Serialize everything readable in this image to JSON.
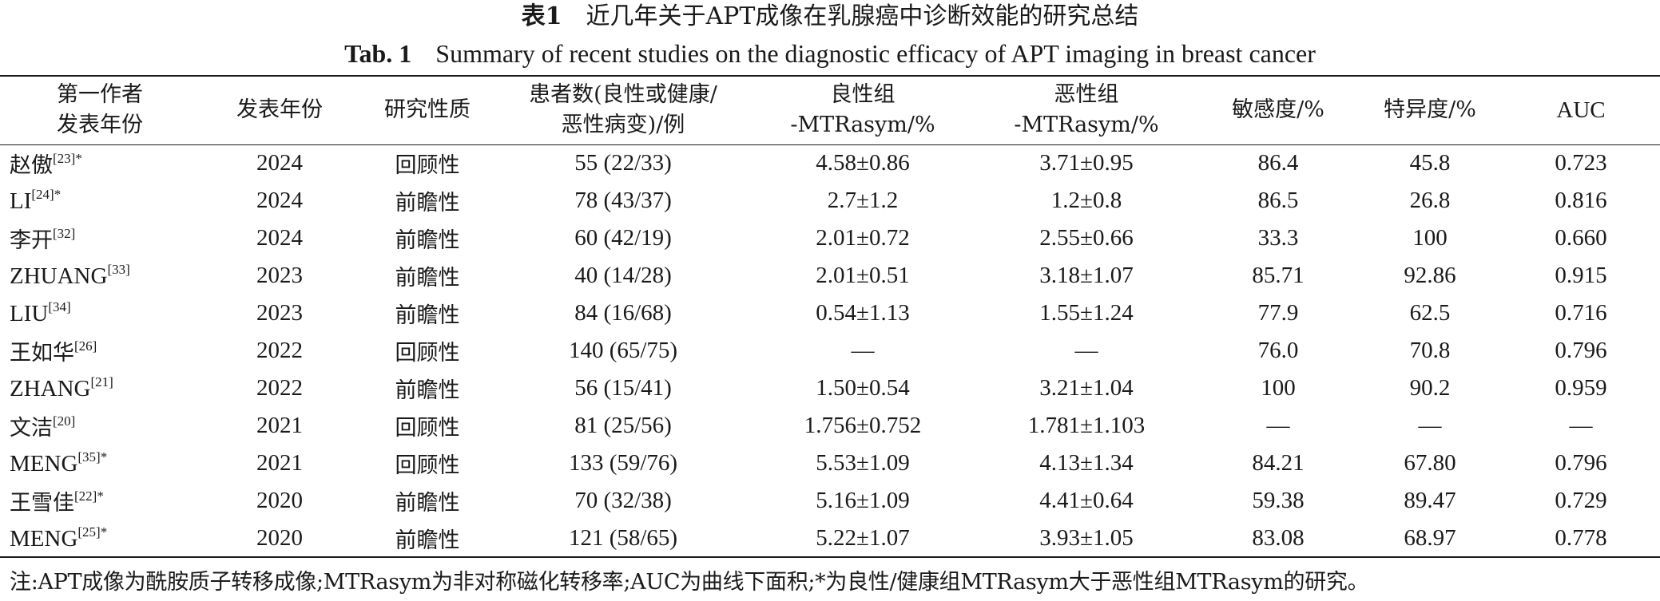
{
  "caption": {
    "cn_label": "表1",
    "cn_text": "近几年关于APT成像在乳腺癌中诊断效能的研究总结",
    "en_label": "Tab. 1",
    "en_text": "Summary of recent studies on the diagnostic efficacy of APT imaging in breast cancer"
  },
  "table": {
    "headers": [
      {
        "line1": "第一作者",
        "line2": "发表年份"
      },
      {
        "line1": "发表年份",
        "line2": ""
      },
      {
        "line1": "研究性质",
        "line2": ""
      },
      {
        "line1": "患者数(良性或健康/",
        "line2": "恶性病变)/例"
      },
      {
        "line1": "良性组",
        "line2": "-MTRasym/%"
      },
      {
        "line1": "恶性组",
        "line2": "-MTRasym/%"
      },
      {
        "line1": "敏感度/%",
        "line2": ""
      },
      {
        "line1": "特异度/%",
        "line2": ""
      },
      {
        "line1": "AUC",
        "line2": ""
      }
    ],
    "rows": [
      {
        "author": "赵傲",
        "ref": "[23]*",
        "year": "2024",
        "type": "回顾性",
        "patients": "55 (22/33)",
        "benign": "4.58±0.86",
        "malignant": "3.71±0.95",
        "sens": "86.4",
        "spec": "45.8",
        "auc": "0.723"
      },
      {
        "author": "LI",
        "ref": "[24]*",
        "year": "2024",
        "type": "前瞻性",
        "patients": "78 (43/37)",
        "benign": "2.7±1.2",
        "malignant": "1.2±0.8",
        "sens": "86.5",
        "spec": "26.8",
        "auc": "0.816"
      },
      {
        "author": "李开",
        "ref": "[32]",
        "year": "2024",
        "type": "前瞻性",
        "patients": "60 (42/19)",
        "benign": "2.01±0.72",
        "malignant": "2.55±0.66",
        "sens": "33.3",
        "spec": "100",
        "auc": "0.660"
      },
      {
        "author": "ZHUANG",
        "ref": "[33]",
        "year": "2023",
        "type": "前瞻性",
        "patients": "40 (14/28)",
        "benign": "2.01±0.51",
        "malignant": "3.18±1.07",
        "sens": "85.71",
        "spec": "92.86",
        "auc": "0.915"
      },
      {
        "author": "LIU",
        "ref": "[34]",
        "year": "2023",
        "type": "前瞻性",
        "patients": "84 (16/68)",
        "benign": "0.54±1.13",
        "malignant": "1.55±1.24",
        "sens": "77.9",
        "spec": "62.5",
        "auc": "0.716"
      },
      {
        "author": "王如华",
        "ref": "[26]",
        "year": "2022",
        "type": "回顾性",
        "patients": "140 (65/75)",
        "benign": "—",
        "malignant": "—",
        "sens": "76.0",
        "spec": "70.8",
        "auc": "0.796"
      },
      {
        "author": "ZHANG",
        "ref": "[21]",
        "year": "2022",
        "type": "前瞻性",
        "patients": "56 (15/41)",
        "benign": "1.50±0.54",
        "malignant": "3.21±1.04",
        "sens": "100",
        "spec": "90.2",
        "auc": "0.959"
      },
      {
        "author": "文洁",
        "ref": "[20]",
        "year": "2021",
        "type": "回顾性",
        "patients": "81 (25/56)",
        "benign": "1.756±0.752",
        "malignant": "1.781±1.103",
        "sens": "—",
        "spec": "—",
        "auc": "—"
      },
      {
        "author": "MENG",
        "ref": "[35]*",
        "year": "2021",
        "type": "回顾性",
        "patients": "133 (59/76)",
        "benign": "5.53±1.09",
        "malignant": "4.13±1.34",
        "sens": "84.21",
        "spec": "67.80",
        "auc": "0.796"
      },
      {
        "author": "王雪佳",
        "ref": "[22]*",
        "year": "2020",
        "type": "前瞻性",
        "patients": "70 (32/38)",
        "benign": "5.16±1.09",
        "malignant": "4.41±0.64",
        "sens": "59.38",
        "spec": "89.47",
        "auc": "0.729"
      },
      {
        "author": "MENG",
        "ref": "[25]*",
        "year": "2020",
        "type": "前瞻性",
        "patients": "121 (58/65)",
        "benign": "5.22±1.07",
        "malignant": "3.93±1.05",
        "sens": "83.08",
        "spec": "68.97",
        "auc": "0.778"
      }
    ]
  },
  "note": "注:APT成像为酰胺质子转移成像;MTRasym为非对称磁化转移率;AUC为曲线下面积;*为良性/健康组MTRasym大于恶性组MTRasym的研究。"
}
